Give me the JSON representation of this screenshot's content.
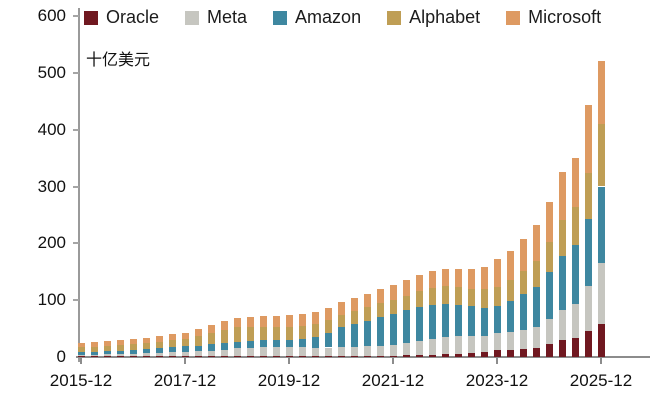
{
  "chart": {
    "unit_label": "十亿美元"
  },
  "chart_data": {
    "type": "bar",
    "stacked": true,
    "title": "",
    "xlabel": "",
    "ylabel": "十亿美元",
    "unit": "billion USD",
    "ylim": [
      0,
      600
    ],
    "yticks": [
      0,
      100,
      200,
      300,
      400,
      500,
      600
    ],
    "grid": false,
    "legend_position": "top",
    "x_tick_indices": [
      0,
      8,
      16,
      24,
      32,
      40
    ],
    "x_tick_labels": [
      "2015-12",
      "2017-12",
      "2019-12",
      "2021-12",
      "2023-12",
      "2025-12"
    ],
    "categories": [
      "2015-12",
      "2016-03",
      "2016-06",
      "2016-09",
      "2016-12",
      "2017-03",
      "2017-06",
      "2017-09",
      "2017-12",
      "2018-03",
      "2018-06",
      "2018-09",
      "2018-12",
      "2019-03",
      "2019-06",
      "2019-09",
      "2019-12",
      "2020-03",
      "2020-06",
      "2020-09",
      "2020-12",
      "2021-03",
      "2021-06",
      "2021-09",
      "2021-12",
      "2022-03",
      "2022-06",
      "2022-09",
      "2022-12",
      "2023-03",
      "2023-06",
      "2023-09",
      "2023-12",
      "2024-03",
      "2024-06",
      "2024-09",
      "2024-12",
      "2025-03",
      "2025-06",
      "2025-09",
      "2025-12"
    ],
    "series": [
      {
        "name": "Oracle",
        "color": "#701820",
        "values": [
          1.3,
          1.2,
          1.2,
          1.1,
          1.2,
          1.5,
          1.8,
          2.0,
          1.9,
          1.8,
          1.7,
          1.6,
          1.7,
          1.6,
          1.6,
          1.6,
          1.6,
          1.6,
          1.6,
          1.5,
          1.6,
          1.8,
          2.0,
          2.1,
          2.1,
          2.9,
          3.6,
          4.1,
          4.5,
          6.0,
          7.0,
          8.0,
          12.0,
          13.0,
          14.0,
          16.0,
          22.0,
          30.0,
          34.0,
          45.0,
          58.0
        ]
      },
      {
        "name": "Meta",
        "color": "#c6c6c0",
        "values": [
          2.5,
          3.0,
          3.4,
          4.0,
          4.5,
          5.0,
          5.6,
          6.2,
          6.7,
          8.0,
          9.6,
          11.5,
          14.0,
          15.0,
          15.5,
          15.6,
          15.4,
          15.2,
          15.0,
          15.2,
          15.7,
          16.2,
          17.0,
          18.0,
          19.0,
          21.0,
          24.0,
          28.0,
          31.5,
          31.0,
          30.0,
          29.0,
          30.0,
          31.0,
          33.0,
          37.0,
          44.0,
          52.0,
          60.0,
          80.0,
          108.0
        ]
      },
      {
        "name": "Amazon",
        "color": "#3e87a0",
        "values": [
          4.6,
          5.1,
          5.7,
          6.3,
          6.7,
          7.5,
          8.4,
          9.3,
          10.0,
          10.4,
          10.8,
          11.1,
          11.3,
          11.6,
          12.0,
          12.4,
          12.7,
          15.0,
          19.0,
          26.0,
          35.0,
          40.0,
          45.0,
          51.0,
          55.0,
          58.0,
          60.0,
          60.0,
          58.0,
          55.0,
          52.0,
          50.0,
          48.0,
          55.0,
          63.0,
          70.0,
          83.0,
          95.0,
          103.0,
          118.0,
          134.0
        ]
      },
      {
        "name": "Alphabet",
        "color": "#bf9e55",
        "values": [
          9.9,
          9.1,
          9.6,
          9.8,
          10.2,
          10.6,
          11.2,
          11.9,
          13.2,
          17.0,
          21.0,
          24.0,
          25.1,
          25.0,
          24.5,
          24.0,
          23.5,
          23.0,
          22.6,
          22.3,
          22.3,
          22.8,
          23.5,
          24.2,
          24.6,
          26.0,
          28.0,
          30.0,
          31.5,
          31.0,
          31.5,
          32.0,
          32.3,
          36.0,
          41.0,
          46.0,
          52.5,
          64.0,
          67.0,
          80.0,
          110.0
        ]
      },
      {
        "name": "Microsoft",
        "color": "#de9a62",
        "values": [
          6.7,
          7.2,
          7.9,
          8.5,
          9.0,
          9.4,
          10.0,
          10.6,
          11.2,
          12.8,
          14.0,
          15.0,
          16.0,
          17.0,
          18.0,
          19.0,
          20.0,
          21.0,
          21.5,
          22.0,
          22.0,
          22.5,
          23.5,
          24.5,
          25.5,
          27.0,
          29.0,
          30.0,
          29.5,
          31.0,
          34.0,
          39.0,
          50.0,
          51.0,
          57.0,
          63.0,
          71.0,
          85.0,
          86.0,
          120.0,
          110.0
        ]
      }
    ]
  }
}
